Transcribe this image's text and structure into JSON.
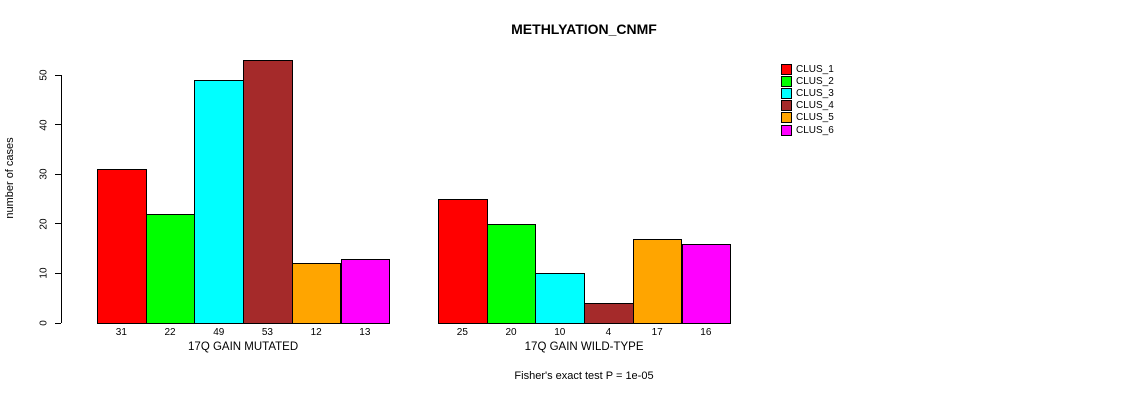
{
  "chart_data": {
    "type": "bar",
    "title": "METHLYATION_CNMF",
    "xlabel": "",
    "ylabel": "number of cases",
    "ylim": [
      0,
      50
    ],
    "yticks": [
      0,
      10,
      20,
      30,
      40,
      50
    ],
    "grid": false,
    "legend_position": "right",
    "bar_value_labels": true,
    "categories": [
      "17Q GAIN MUTATED",
      "17Q GAIN WILD-TYPE"
    ],
    "series": [
      {
        "name": "CLUS_1",
        "color": "#FF0000",
        "values": [
          31,
          25
        ]
      },
      {
        "name": "CLUS_2",
        "color": "#00FF00",
        "values": [
          22,
          20
        ]
      },
      {
        "name": "CLUS_3",
        "color": "#00FFFF",
        "values": [
          49,
          10
        ]
      },
      {
        "name": "CLUS_4",
        "color": "#A52A2A",
        "values": [
          53,
          4
        ]
      },
      {
        "name": "CLUS_5",
        "color": "#FFA500",
        "values": [
          12,
          17
        ]
      },
      {
        "name": "CLUS_6",
        "color": "#FF00FF",
        "values": [
          13,
          16
        ]
      }
    ],
    "annotation": "Fisher's exact test P = 1e-05"
  }
}
